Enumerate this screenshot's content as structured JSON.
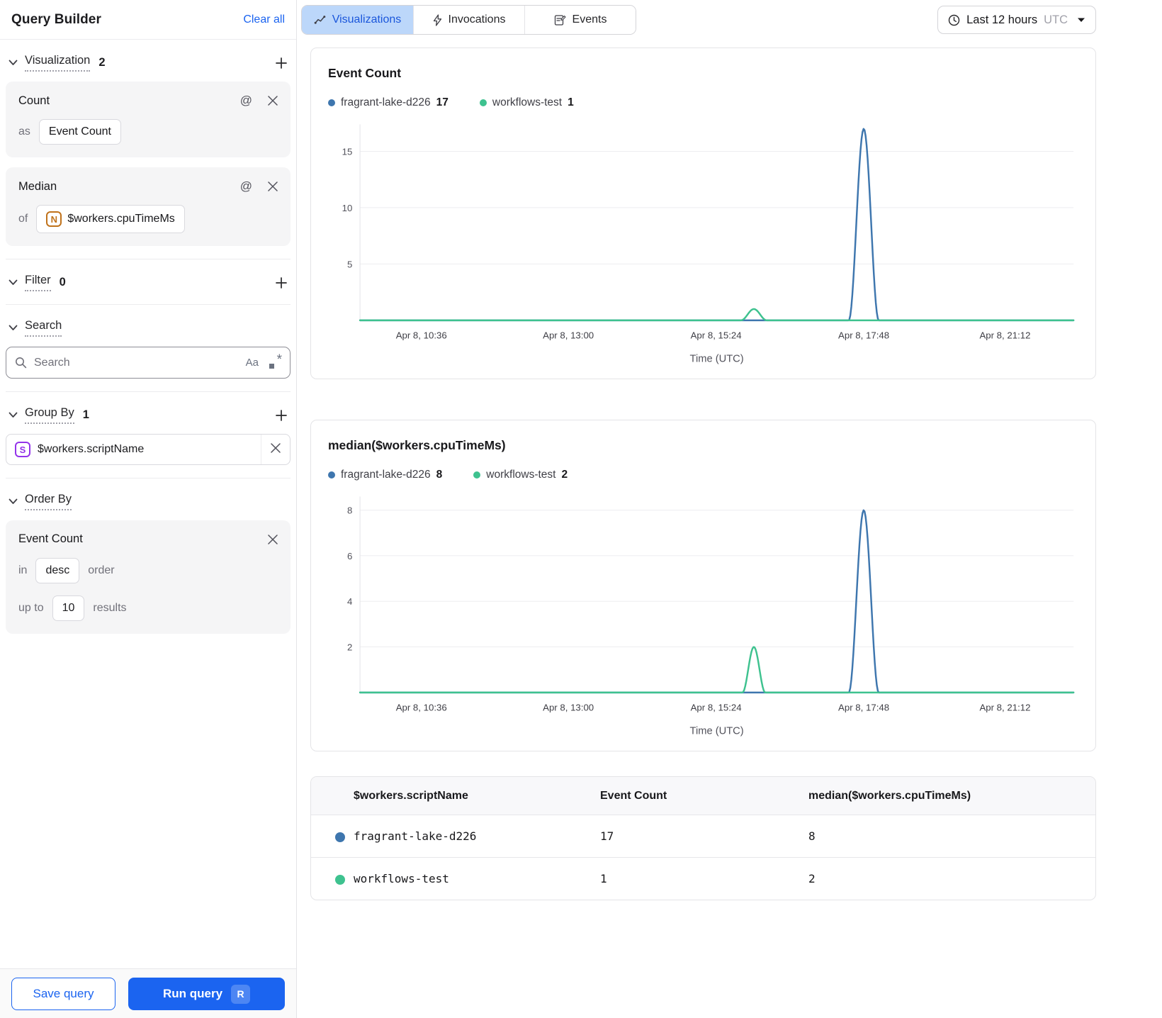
{
  "sidebar": {
    "title": "Query Builder",
    "clear_all_label": "Clear all",
    "visualization": {
      "label": "Visualization",
      "count": "2",
      "cards": [
        {
          "title": "Count",
          "preposition": "as",
          "field": "Event Count",
          "badge": ""
        },
        {
          "title": "Median",
          "preposition": "of",
          "field": "$workers.cpuTimeMs",
          "badge": "N"
        }
      ]
    },
    "filter": {
      "label": "Filter",
      "count": "0"
    },
    "search": {
      "label": "Search",
      "placeholder": "Search",
      "match_case": "Aa"
    },
    "group_by": {
      "label": "Group By",
      "count": "1",
      "items": [
        {
          "badge": "S",
          "field": "$workers.scriptName"
        }
      ]
    },
    "order_by": {
      "label": "Order By",
      "field": "Event Count",
      "in_label": "in",
      "direction": "desc",
      "order_label": "order",
      "up_to_label": "up to",
      "limit": "10",
      "results_label": "results"
    },
    "footer": {
      "save_label": "Save query",
      "run_label": "Run query",
      "run_shortcut": "R"
    }
  },
  "topbar": {
    "tabs": [
      {
        "label": "Visualizations",
        "icon": "line-chart-icon",
        "active": true
      },
      {
        "label": "Invocations",
        "icon": "lightning-icon",
        "active": false
      },
      {
        "label": "Events",
        "icon": "form-icon",
        "active": false
      }
    ],
    "time_range": {
      "label": "Last 12 hours",
      "timezone": "UTC"
    }
  },
  "colors": {
    "accent_blue": "#1b64f0",
    "active_tab_bg": "#bcd7fa",
    "active_tab_text": "#1a56db",
    "series_blue": "#3e76ae",
    "series_green": "#3ec28f",
    "gridline": "#ededf0"
  },
  "chart_data": [
    {
      "type": "line",
      "title": "Event Count",
      "xlabel": "Time (UTC)",
      "legend": [
        {
          "name": "fragrant-lake-d226",
          "value": "17",
          "color": "#3e76ae"
        },
        {
          "name": "workflows-test",
          "value": "1",
          "color": "#3ec28f"
        }
      ],
      "x_ticks": [
        {
          "label": "Apr 8, 10:36",
          "pos": 0.086
        },
        {
          "label": "Apr 8, 13:00",
          "pos": 0.292
        },
        {
          "label": "Apr 8, 15:24",
          "pos": 0.499
        },
        {
          "label": "Apr 8, 17:48",
          "pos": 0.706
        },
        {
          "label": "Apr 8, 21:12",
          "pos": 0.904
        }
      ],
      "y_ticks": [
        5,
        10,
        15
      ],
      "y_max": 17.4,
      "grid": true,
      "series": [
        {
          "name": "fragrant-lake-d226",
          "color": "#3e76ae",
          "baseline": 0,
          "spikes": [
            {
              "peak": 17,
              "peak_time": "Apr 8, 17:48",
              "pos": 0.706,
              "width": 0.021
            }
          ]
        },
        {
          "name": "workflows-test",
          "color": "#3ec28f",
          "baseline": 0,
          "spikes": [
            {
              "peak": 1,
              "peak_time": "Apr 8, 16:00",
              "pos": 0.552,
              "width": 0.018
            }
          ]
        }
      ]
    },
    {
      "type": "line",
      "title": "median($workers.cpuTimeMs)",
      "xlabel": "Time (UTC)",
      "legend": [
        {
          "name": "fragrant-lake-d226",
          "value": "8",
          "color": "#3e76ae"
        },
        {
          "name": "workflows-test",
          "value": "2",
          "color": "#3ec28f"
        }
      ],
      "x_ticks": [
        {
          "label": "Apr 8, 10:36",
          "pos": 0.086
        },
        {
          "label": "Apr 8, 13:00",
          "pos": 0.292
        },
        {
          "label": "Apr 8, 15:24",
          "pos": 0.499
        },
        {
          "label": "Apr 8, 17:48",
          "pos": 0.706
        },
        {
          "label": "Apr 8, 21:12",
          "pos": 0.904
        }
      ],
      "y_ticks": [
        2,
        4,
        6,
        8
      ],
      "y_max": 8.6,
      "grid": true,
      "series": [
        {
          "name": "fragrant-lake-d226",
          "color": "#3e76ae",
          "baseline": 0,
          "spikes": [
            {
              "peak": 8,
              "peak_time": "Apr 8, 17:48",
              "pos": 0.706,
              "width": 0.021
            }
          ]
        },
        {
          "name": "workflows-test",
          "color": "#3ec28f",
          "baseline": 0,
          "spikes": [
            {
              "peak": 2,
              "peak_time": "Apr 8, 16:00",
              "pos": 0.552,
              "width": 0.016
            }
          ]
        }
      ]
    }
  ],
  "table": {
    "headers": [
      "$workers.scriptName",
      "Event Count",
      "median($workers.cpuTimeMs)"
    ],
    "rows": [
      {
        "color": "#3e76ae",
        "script_name": "fragrant-lake-d226",
        "event_count": "17",
        "median": "8"
      },
      {
        "color": "#3ec28f",
        "script_name": "workflows-test",
        "event_count": "1",
        "median": "2"
      }
    ]
  }
}
